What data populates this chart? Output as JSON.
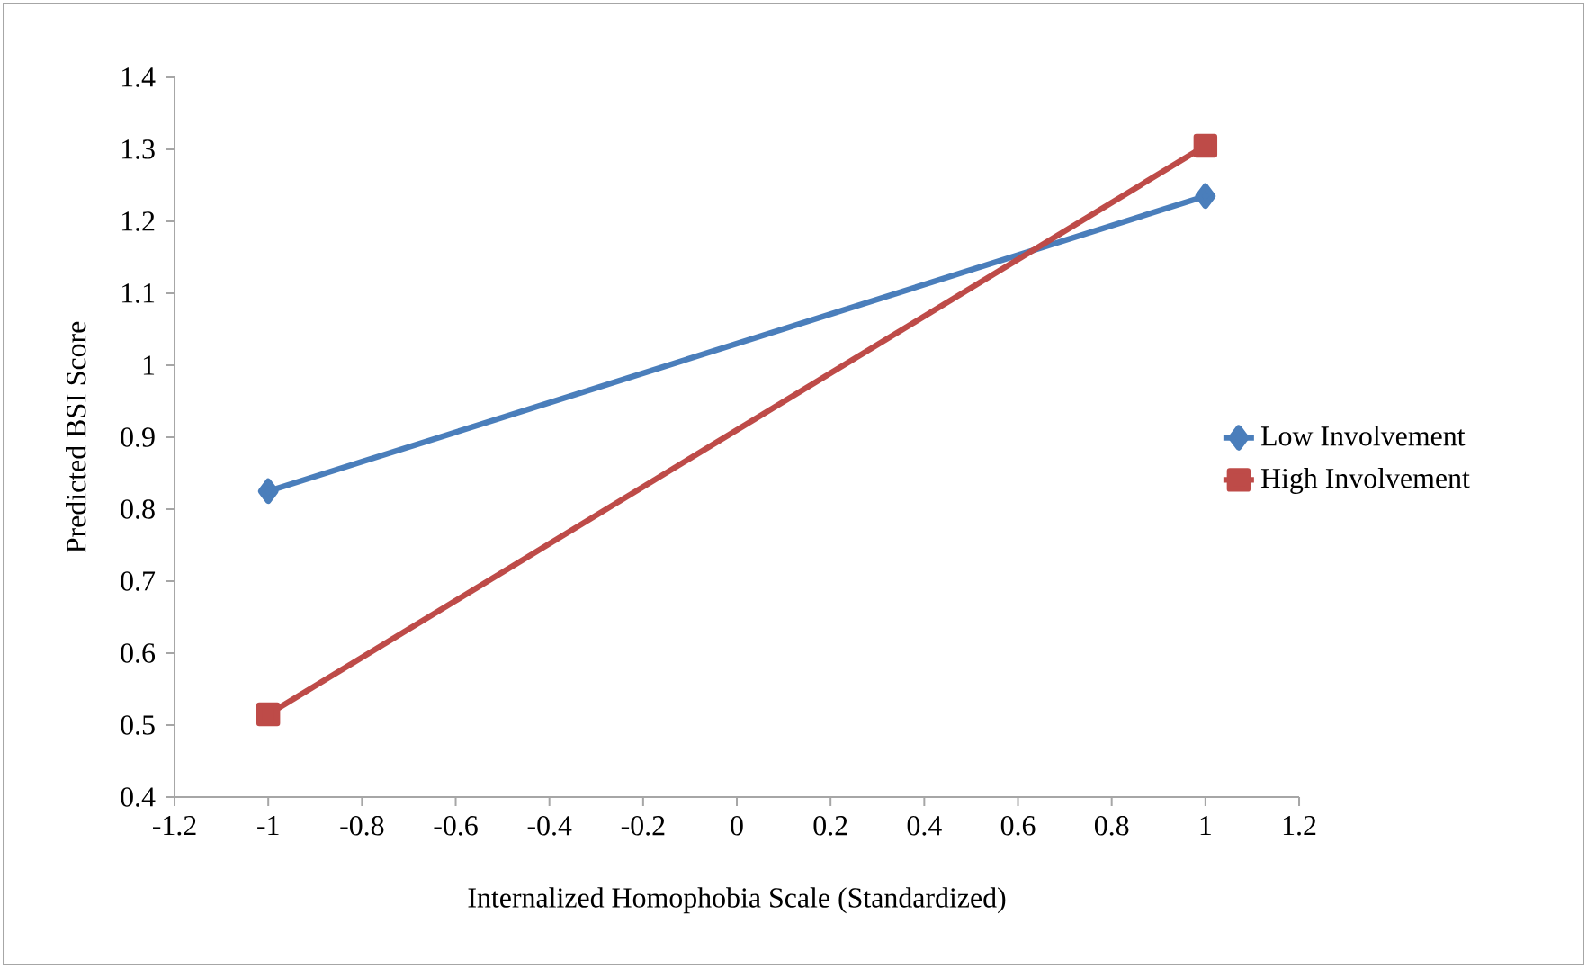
{
  "chart_data": {
    "type": "line",
    "xlabel": "Internalized Homophobia Scale (Standardized)",
    "ylabel": "Predicted BSI Score",
    "x": [
      -1,
      1
    ],
    "series": [
      {
        "name": "Low Involvement",
        "color": "#4a7ebb",
        "marker": "diamond",
        "values": [
          0.825,
          1.235
        ]
      },
      {
        "name": "High Involvement",
        "color": "#be4b48",
        "marker": "square",
        "values": [
          0.515,
          1.305
        ]
      }
    ],
    "xlim": [
      -1.2,
      1.2
    ],
    "xticks": [
      -1.2,
      -1,
      -0.8,
      -0.6,
      -0.4,
      -0.2,
      0,
      0.2,
      0.4,
      0.6,
      0.8,
      1,
      1.2
    ],
    "ylim": [
      0.4,
      1.4
    ],
    "yticks": [
      0.4,
      0.5,
      0.6,
      0.7,
      0.8,
      0.9,
      1,
      1.1,
      1.2,
      1.3,
      1.4
    ],
    "legend": "right",
    "grid": false
  }
}
